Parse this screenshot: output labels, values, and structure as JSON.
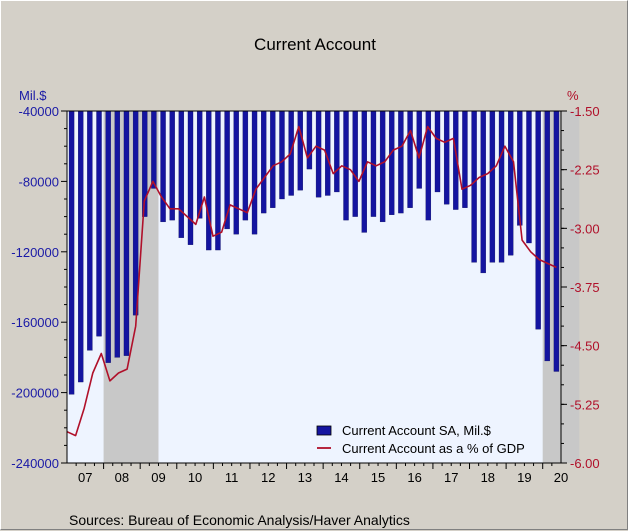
{
  "chart_data": {
    "type": "bar",
    "title": "Current Account",
    "source": "Sources:   Bureau of Economic Analysis/Haver Analytics",
    "left_axis": {
      "unit_label": "Mil.$",
      "range": [
        -240000,
        -40000
      ],
      "ticks": [
        "-40000",
        "-80000",
        "-120000",
        "-160000",
        "-200000",
        "-240000"
      ],
      "tick_values": [
        -40000,
        -80000,
        -120000,
        -160000,
        -200000,
        -240000
      ]
    },
    "right_axis": {
      "unit_label": "%",
      "range": [
        -6.0,
        -1.5
      ],
      "ticks": [
        "-1.50",
        "-2.25",
        "-3.00",
        "-3.75",
        "-4.50",
        "-5.25",
        "-6.00"
      ],
      "tick_values": [
        -1.5,
        -2.25,
        -3.0,
        -3.75,
        -4.5,
        -5.25,
        -6.0
      ]
    },
    "x_axis": {
      "labels": [
        "07",
        "08",
        "09",
        "10",
        "11",
        "12",
        "13",
        "14",
        "15",
        "16",
        "17",
        "18",
        "19",
        "20"
      ],
      "start_year": 2007
    },
    "recessions": [
      {
        "start": "2008Q1",
        "end": "2009Q2"
      },
      {
        "start": "2020Q1",
        "end": "2020Q4"
      }
    ],
    "legend": {
      "position": "bottom-right"
    },
    "series": [
      {
        "name": "Current Account SA, Mil.$",
        "type": "bar",
        "axis": "left",
        "color": "#1414a0",
        "values": [
          -201000,
          -194000,
          -176000,
          -168000,
          -183000,
          -180000,
          -179000,
          -156000,
          -100000,
          -84000,
          -103000,
          -102000,
          -112000,
          -116000,
          -101000,
          -119000,
          -119000,
          -107000,
          -110000,
          -102000,
          -110000,
          -98000,
          -95000,
          -90000,
          -88000,
          -85000,
          -73000,
          -89000,
          -88000,
          -86000,
          -102000,
          -100000,
          -109000,
          -100000,
          -103000,
          -99000,
          -98000,
          -95000,
          -84000,
          -102000,
          -86000,
          -93000,
          -96000,
          -95000,
          -126000,
          -132000,
          -126000,
          -126000,
          -122000,
          -105000,
          -115000,
          -164000,
          -182000,
          -188000
        ]
      },
      {
        "name": "Current Account as a % of GDP",
        "type": "line",
        "axis": "right",
        "color": "#b0102a",
        "values": [
          -5.6,
          -5.65,
          -5.3,
          -4.85,
          -4.6,
          -4.95,
          -4.85,
          -4.8,
          -4.25,
          -2.65,
          -2.4,
          -2.6,
          -2.75,
          -2.75,
          -2.85,
          -2.95,
          -2.6,
          -3.1,
          -3.05,
          -2.7,
          -2.75,
          -2.8,
          -2.5,
          -2.35,
          -2.2,
          -2.15,
          -2.05,
          -1.7,
          -2.1,
          -1.95,
          -2.0,
          -2.3,
          -2.2,
          -2.25,
          -2.4,
          -2.15,
          -2.2,
          -2.15,
          -2.0,
          -1.95,
          -1.75,
          -2.1,
          -1.7,
          -1.85,
          -1.9,
          -1.85,
          -2.5,
          -2.45,
          -2.35,
          -2.3,
          -2.2,
          -1.95,
          -2.15,
          -3.15,
          -3.3,
          -3.4,
          -3.45,
          -3.5
        ],
        "time_offset_quarters": -0.3
      }
    ]
  }
}
